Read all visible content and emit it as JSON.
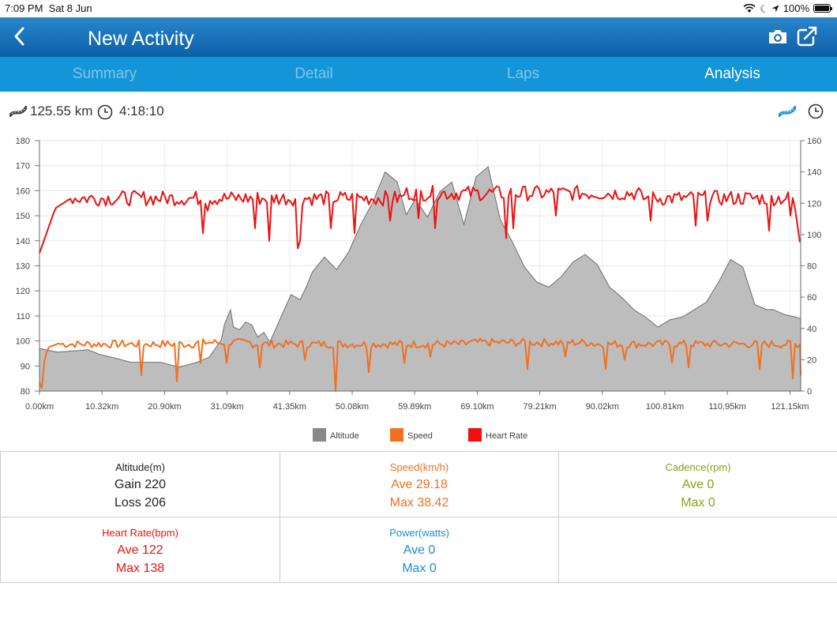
{
  "status": {
    "time": "7:09 PM",
    "date": "Sat 8 Jun",
    "battery": "100%"
  },
  "nav": {
    "title": "New Activity"
  },
  "tabs": [
    "Summary",
    "Detail",
    "Laps",
    "Analysis"
  ],
  "active_tab": 3,
  "info": {
    "distance": "125.55 km",
    "duration": "4:18:10"
  },
  "chart_data": {
    "type": "line",
    "x_tick_labels": [
      "0.00km",
      "10.32km",
      "20.90km",
      "31.09km",
      "41.35km",
      "50.08km",
      "59.89km",
      "69.10km",
      "79.21km",
      "90.02km",
      "100.81km",
      "110.95km",
      "121.15km"
    ],
    "x_range_km": [
      0,
      125.55
    ],
    "left_axis": {
      "ticks": [
        80,
        90,
        100,
        110,
        120,
        130,
        140,
        150,
        160,
        170,
        180
      ],
      "range": [
        80,
        180
      ]
    },
    "right_axis": {
      "ticks": [
        0,
        20,
        40,
        60,
        80,
        100,
        120,
        140,
        160
      ],
      "range": [
        0,
        160
      ]
    },
    "legend": [
      "Altitude",
      "Speed",
      "Heart Rate"
    ],
    "series": [
      {
        "name": "Altitude",
        "color": "#888888",
        "axis": "left",
        "x": [
          0,
          3,
          8,
          10,
          12,
          15,
          20,
          23,
          26,
          28,
          30,
          30.5,
          31.5,
          32,
          33,
          34,
          35,
          36,
          37,
          38,
          40,
          41.5,
          43,
          44,
          45,
          47,
          49,
          51,
          53,
          55,
          57,
          59,
          60.5,
          62,
          64,
          66,
          68,
          70,
          72,
          74,
          76,
          78,
          80,
          82,
          84,
          86,
          88,
          90,
          92,
          94,
          96,
          98,
          100,
          102,
          104,
          106,
          108,
          110,
          112,
          114,
          116,
          118,
          120,
          121,
          123,
          125.55
        ],
        "values": [
          97,
          96,
          96,
          95,
          93,
          92,
          91,
          90,
          91,
          94,
          100,
          107,
          112,
          106,
          104,
          108,
          106,
          102,
          103,
          100,
          110,
          119,
          116,
          122,
          127,
          134,
          128,
          136,
          146,
          156,
          167,
          164,
          150,
          157,
          149,
          160,
          163,
          147,
          165,
          170,
          148,
          140,
          129,
          124,
          121,
          126,
          131,
          135,
          130,
          122,
          117,
          113,
          109,
          106,
          108,
          110,
          112,
          116,
          123,
          133,
          129,
          115,
          112,
          113,
          110,
          109
        ]
      },
      {
        "name": "Speed",
        "color": "#f07020",
        "axis": "right",
        "baseline": 30
      },
      {
        "name": "Heart Rate",
        "color": "#ee1111",
        "axis": "left",
        "baseline": 157
      }
    ]
  },
  "stats": {
    "altitude": {
      "title": "Altitude(m)",
      "gain": "Gain 220",
      "loss": "Loss 206"
    },
    "speed": {
      "title": "Speed(km/h)",
      "ave": "Ave 29.18",
      "max": "Max 38.42"
    },
    "cadence": {
      "title": "Cadence(rpm)",
      "ave": "Ave 0",
      "max": "Max 0"
    },
    "heart_rate": {
      "title": "Heart Rate(bpm)",
      "ave": "Ave 122",
      "max": "Max 138"
    },
    "power": {
      "title": "Power(watts)",
      "ave": "Ave 0",
      "max": "Max 0"
    }
  },
  "colors": {
    "nav_top": "#2a86cc",
    "tabs": "#1495d7",
    "altitude": "#888888",
    "speed": "#f07020",
    "heart": "#ee1111"
  }
}
